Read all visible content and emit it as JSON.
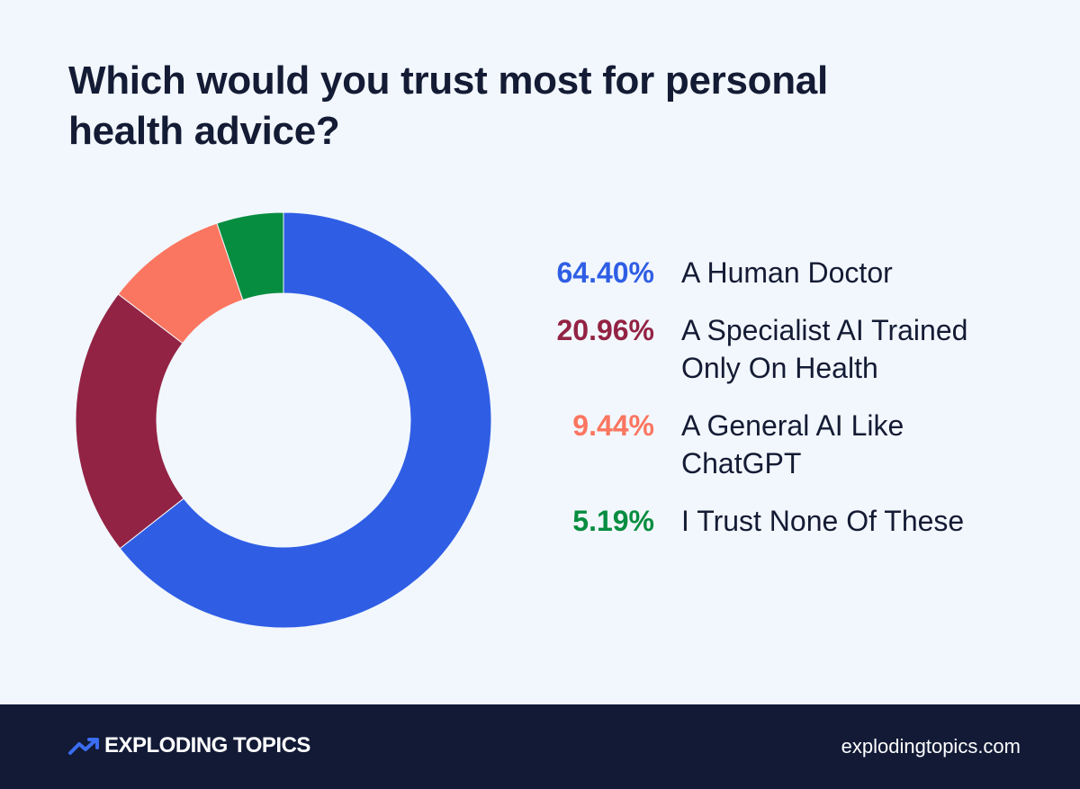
{
  "chart_data": {
    "type": "pie",
    "title": "Which would you trust most for personal health advice?",
    "slices": [
      {
        "label": "A Human Doctor",
        "value": 64.4,
        "value_label": "64.40%",
        "color": "#2f5ee5"
      },
      {
        "label": "A Specialist AI Trained Only On Health",
        "value": 20.96,
        "value_label": "20.96%",
        "color": "#932344"
      },
      {
        "label": "A General AI Like ChatGPT",
        "value": 9.44,
        "value_label": "9.44%",
        "color": "#fb7660"
      },
      {
        "label": "I Trust None Of These",
        "value": 5.19,
        "value_label": "5.19%",
        "color": "#078d40"
      }
    ],
    "donut": true,
    "legend_position": "right"
  },
  "footer": {
    "brand": "EXPLODING TOPICS",
    "url": "explodingtopics.com",
    "background": "#121a36",
    "accent": "#3b6df0"
  },
  "page": {
    "background": "#f2f7fd",
    "text_color": "#141b34"
  }
}
